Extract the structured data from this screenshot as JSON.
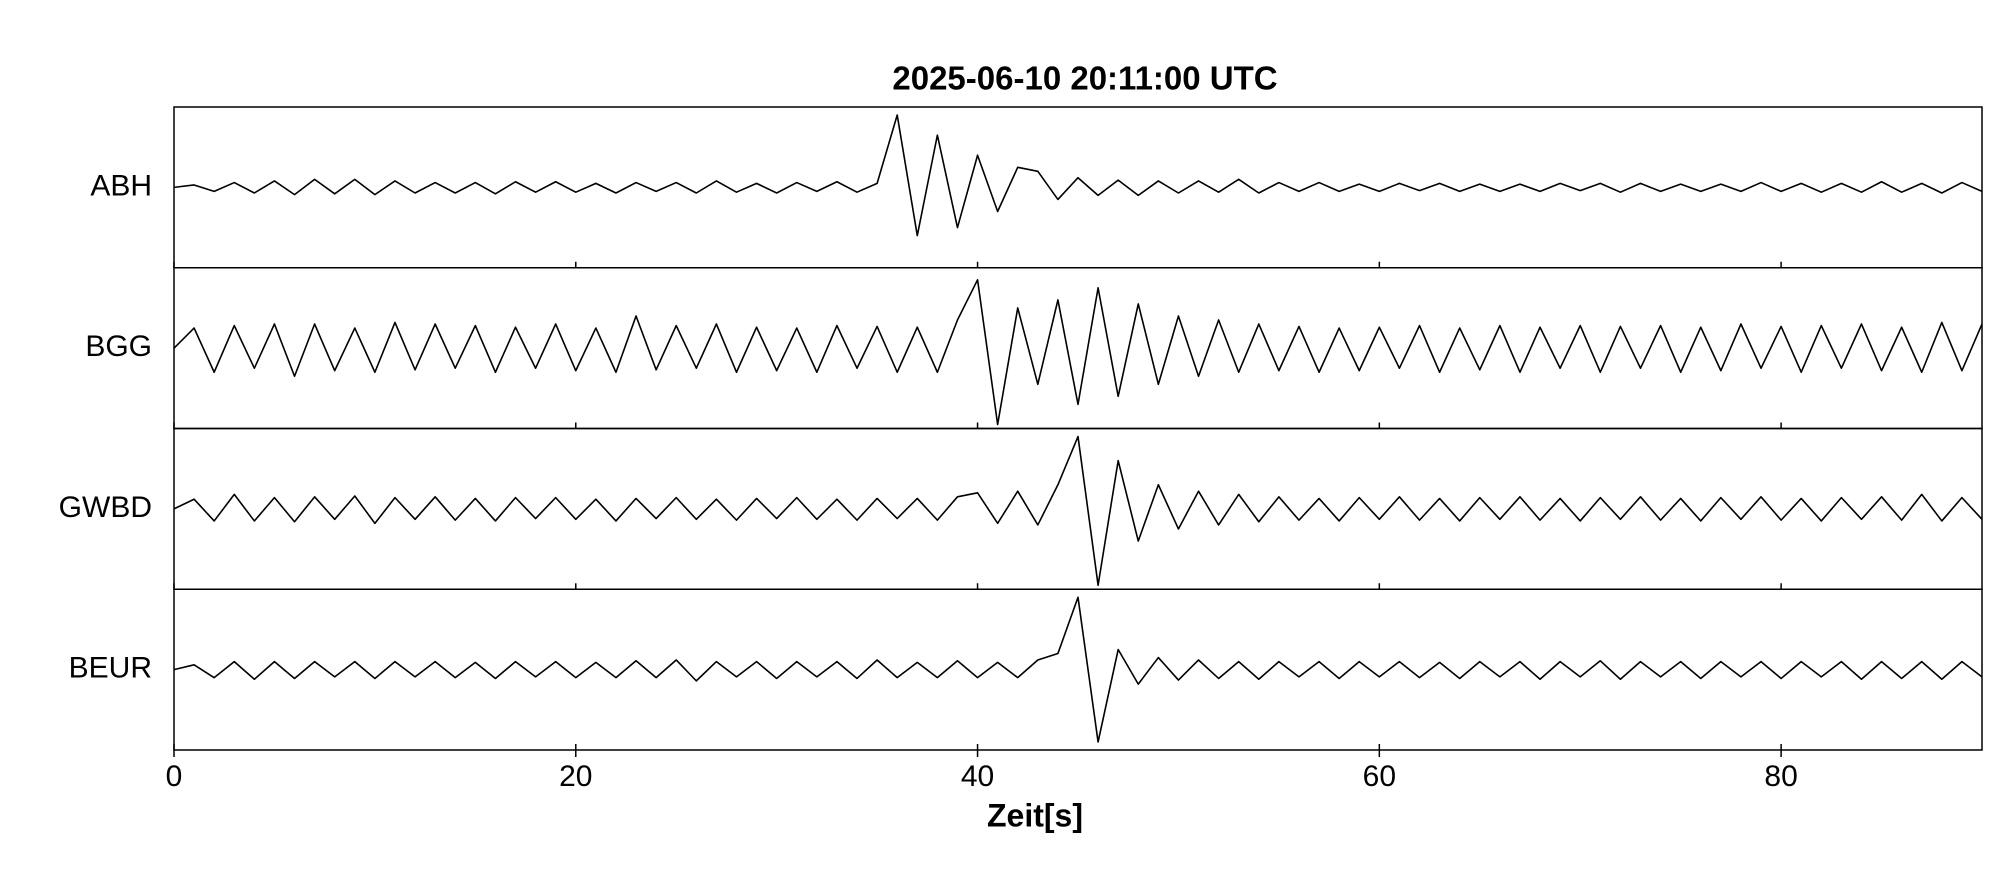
{
  "chart_data": {
    "type": "line",
    "title": "2025-06-10  20:11:00 UTC",
    "xlabel": "Zeit[s]",
    "xlim": [
      0,
      90
    ],
    "xticks": [
      0,
      20,
      40,
      60,
      80
    ],
    "ylim": [
      -1,
      1
    ],
    "x": [
      0,
      1,
      2,
      3,
      4,
      5,
      6,
      7,
      8,
      9,
      10,
      11,
      12,
      13,
      14,
      15,
      16,
      17,
      18,
      19,
      20,
      21,
      22,
      23,
      24,
      25,
      26,
      27,
      28,
      29,
      30,
      31,
      32,
      33,
      34,
      35,
      36,
      37,
      38,
      39,
      40,
      41,
      42,
      43,
      44,
      45,
      46,
      47,
      48,
      49,
      50,
      51,
      52,
      53,
      54,
      55,
      56,
      57,
      58,
      59,
      60,
      61,
      62,
      63,
      64,
      65,
      66,
      67,
      68,
      69,
      70,
      71,
      72,
      73,
      74,
      75,
      76,
      77,
      78,
      79,
      80,
      81,
      82,
      83,
      84,
      85,
      86,
      87,
      88,
      89,
      90
    ],
    "series": [
      {
        "name": "ABH",
        "color": "#000000",
        "values": [
          0,
          0.03,
          -0.05,
          0.06,
          -0.07,
          0.08,
          -0.09,
          0.1,
          -0.08,
          0.1,
          -0.09,
          0.08,
          -0.07,
          0.06,
          -0.07,
          0.06,
          -0.08,
          0.07,
          -0.06,
          0.07,
          -0.06,
          0.05,
          -0.07,
          0.06,
          -0.05,
          0.06,
          -0.07,
          0.08,
          -0.06,
          0.05,
          -0.07,
          0.06,
          -0.05,
          0.07,
          -0.06,
          0.05,
          0.9,
          -0.6,
          0.65,
          -0.5,
          0.4,
          -0.3,
          0.25,
          0.2,
          -0.15,
          0.12,
          -0.1,
          0.09,
          -0.1,
          0.08,
          -0.07,
          0.08,
          -0.06,
          0.1,
          -0.07,
          0.06,
          -0.05,
          0.06,
          -0.05,
          0.04,
          -0.05,
          0.05,
          -0.04,
          0.05,
          -0.05,
          0.04,
          -0.05,
          0.04,
          -0.05,
          0.05,
          -0.04,
          0.05,
          -0.06,
          0.05,
          -0.05,
          0.04,
          -0.05,
          0.04,
          -0.05,
          0.06,
          -0.05,
          0.05,
          -0.06,
          0.05,
          -0.06,
          0.07,
          -0.06,
          0.05,
          -0.07,
          0.06,
          -0.05
        ]
      },
      {
        "name": "BGG",
        "color": "#000000",
        "values": [
          0,
          0.25,
          -0.3,
          0.28,
          -0.25,
          0.3,
          -0.35,
          0.3,
          -0.28,
          0.25,
          -0.3,
          0.32,
          -0.27,
          0.3,
          -0.25,
          0.28,
          -0.3,
          0.26,
          -0.25,
          0.3,
          -0.28,
          0.25,
          -0.3,
          0.4,
          -0.27,
          0.28,
          -0.25,
          0.3,
          -0.3,
          0.26,
          -0.28,
          0.25,
          -0.3,
          0.28,
          -0.25,
          0.27,
          -0.3,
          0.26,
          -0.3,
          0.35,
          0.85,
          -0.95,
          0.5,
          -0.45,
          0.6,
          -0.7,
          0.75,
          -0.6,
          0.55,
          -0.45,
          0.4,
          -0.35,
          0.35,
          -0.3,
          0.3,
          -0.28,
          0.27,
          -0.3,
          0.25,
          -0.28,
          0.26,
          -0.25,
          0.28,
          -0.3,
          0.25,
          -0.27,
          0.28,
          -0.3,
          0.26,
          -0.25,
          0.28,
          -0.3,
          0.27,
          -0.25,
          0.28,
          -0.3,
          0.26,
          -0.28,
          0.3,
          -0.25,
          0.27,
          -0.3,
          0.28,
          -0.25,
          0.3,
          -0.28,
          0.26,
          -0.3,
          0.32,
          -0.28,
          0.3
        ]
      },
      {
        "name": "GWBD",
        "color": "#000000",
        "values": [
          0,
          0.12,
          -0.15,
          0.18,
          -0.15,
          0.14,
          -0.16,
          0.15,
          -0.13,
          0.16,
          -0.18,
          0.14,
          -0.13,
          0.15,
          -0.14,
          0.13,
          -0.15,
          0.14,
          -0.12,
          0.14,
          -0.13,
          0.12,
          -0.15,
          0.13,
          -0.12,
          0.14,
          -0.13,
          0.12,
          -0.14,
          0.13,
          -0.12,
          0.14,
          -0.13,
          0.12,
          -0.14,
          0.13,
          -0.12,
          0.13,
          -0.14,
          0.15,
          0.2,
          -0.18,
          0.22,
          -0.2,
          0.3,
          0.9,
          -0.95,
          0.6,
          -0.4,
          0.3,
          -0.25,
          0.22,
          -0.2,
          0.18,
          -0.16,
          0.15,
          -0.14,
          0.13,
          -0.15,
          0.14,
          -0.13,
          0.15,
          -0.14,
          0.13,
          -0.15,
          0.14,
          -0.13,
          0.15,
          -0.14,
          0.13,
          -0.15,
          0.14,
          -0.13,
          0.15,
          -0.14,
          0.13,
          -0.15,
          0.14,
          -0.13,
          0.15,
          -0.14,
          0.13,
          -0.15,
          0.14,
          -0.13,
          0.15,
          -0.14,
          0.18,
          -0.15,
          0.14,
          -0.13
        ]
      },
      {
        "name": "BEUR",
        "color": "#000000",
        "values": [
          0,
          0.06,
          -0.1,
          0.1,
          -0.12,
          0.1,
          -0.11,
          0.1,
          -0.09,
          0.1,
          -0.11,
          0.1,
          -0.09,
          0.1,
          -0.1,
          0.09,
          -0.11,
          0.1,
          -0.09,
          0.1,
          -0.1,
          0.09,
          -0.1,
          0.11,
          -0.1,
          0.12,
          -0.14,
          0.1,
          -0.09,
          0.1,
          -0.11,
          0.1,
          -0.09,
          0.1,
          -0.11,
          0.12,
          -0.1,
          0.09,
          -0.1,
          0.11,
          -0.1,
          0.09,
          -0.1,
          0.12,
          0.2,
          0.9,
          -0.9,
          0.25,
          -0.18,
          0.15,
          -0.13,
          0.12,
          -0.11,
          0.1,
          -0.12,
          0.1,
          -0.09,
          0.1,
          -0.11,
          0.1,
          -0.09,
          0.1,
          -0.1,
          0.09,
          -0.11,
          0.1,
          -0.09,
          0.1,
          -0.12,
          0.1,
          -0.09,
          0.11,
          -0.12,
          0.1,
          -0.09,
          0.1,
          -0.11,
          0.1,
          -0.09,
          0.1,
          -0.11,
          0.1,
          -0.09,
          0.1,
          -0.12,
          0.1,
          -0.11,
          0.1,
          -0.12,
          0.1,
          -0.09
        ]
      }
    ]
  }
}
